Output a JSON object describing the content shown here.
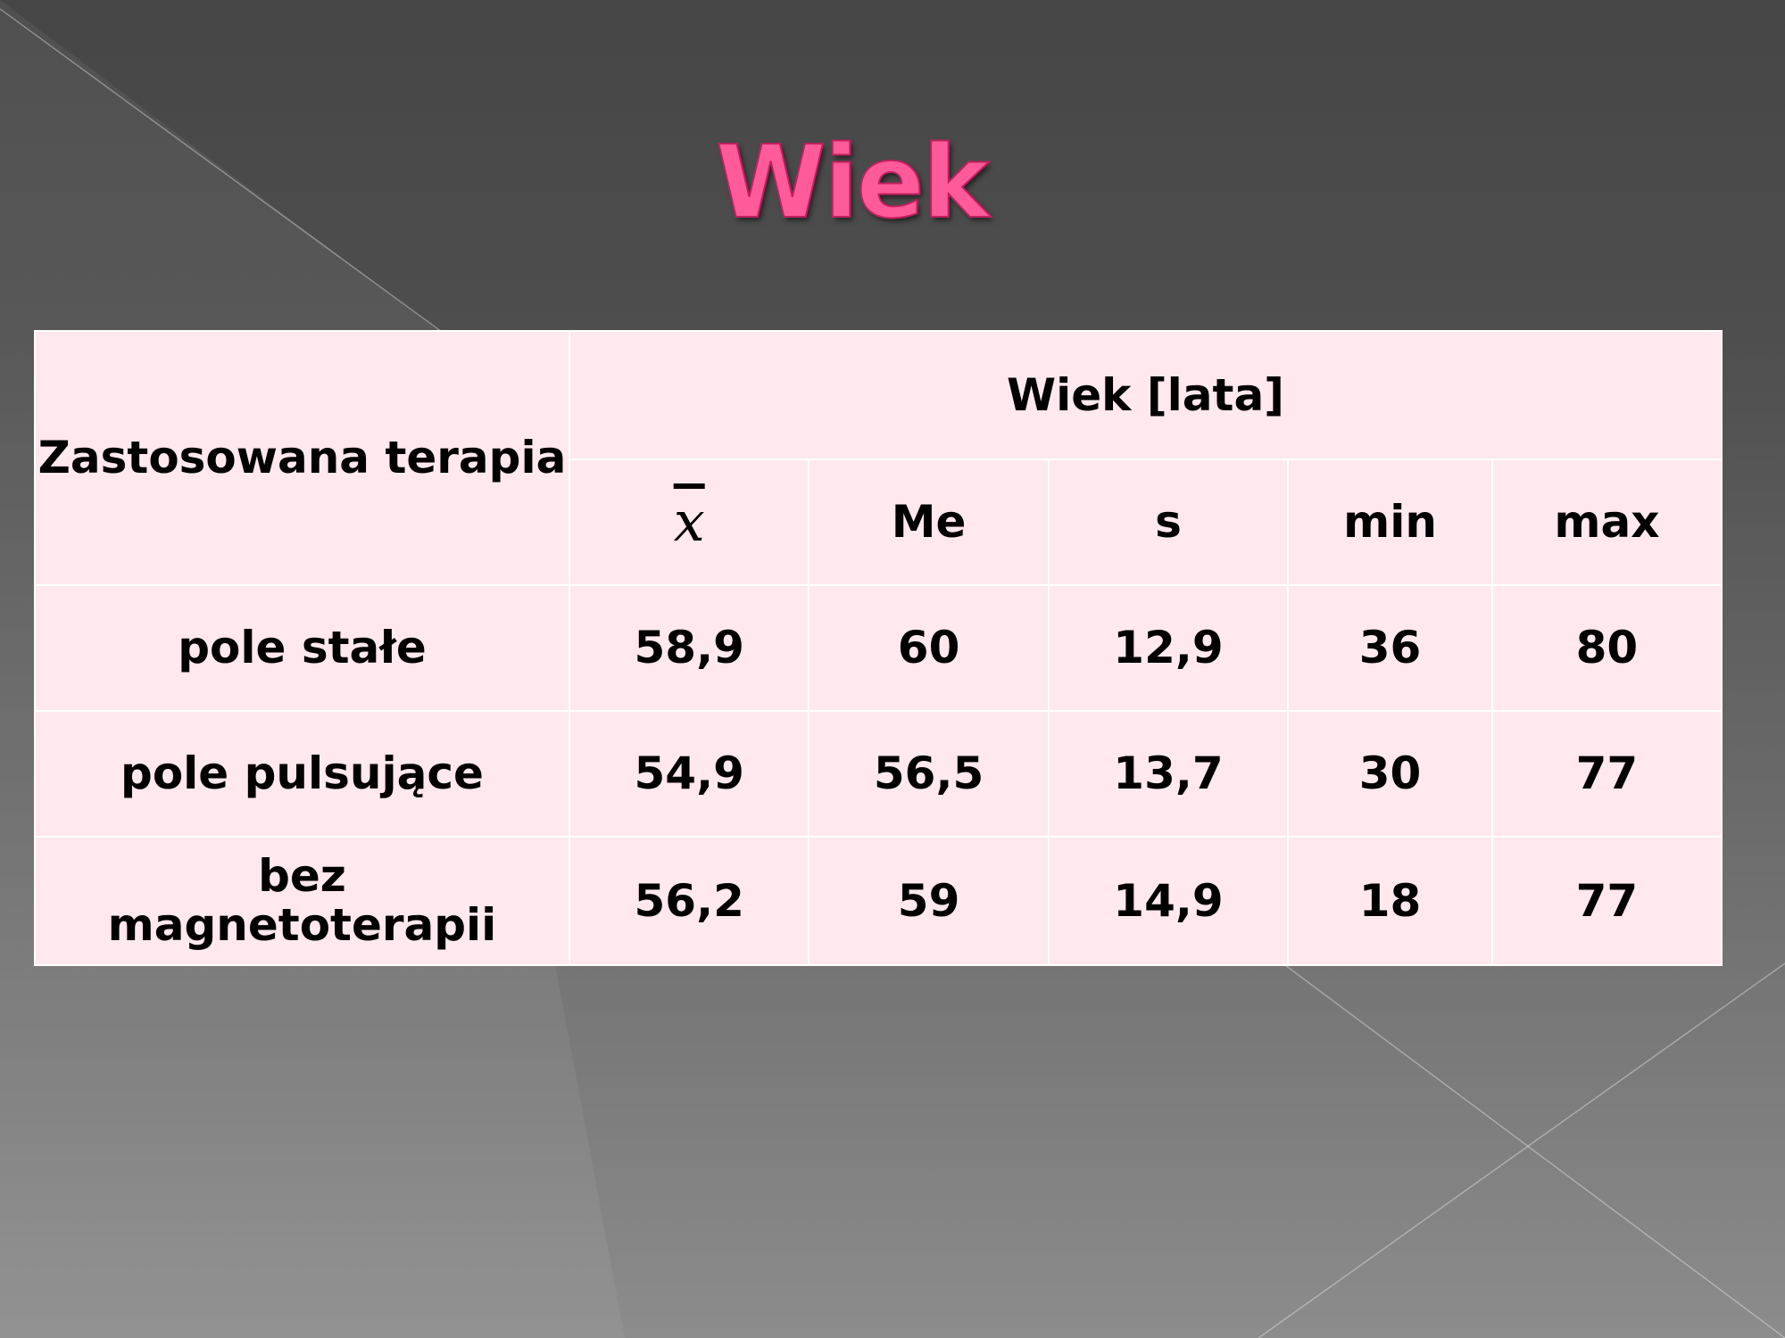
{
  "slide": {
    "title": "Wiek",
    "title_color": "#ff5a9a"
  },
  "table": {
    "row_header": "Zastosowana terapia",
    "group_header": "Wiek [lata]",
    "columns": [
      "x",
      "Me",
      "s",
      "min",
      "max"
    ],
    "rows": [
      {
        "label": "pole stałe",
        "values": [
          "58,9",
          "60",
          "12,9",
          "36",
          "80"
        ]
      },
      {
        "label": "pole pulsujące",
        "values": [
          "54,9",
          "56,5",
          "13,7",
          "30",
          "77"
        ]
      },
      {
        "label": "bez magnetoterapii",
        "values": [
          "56,2",
          "59",
          "14,9",
          "18",
          "77"
        ]
      }
    ]
  }
}
